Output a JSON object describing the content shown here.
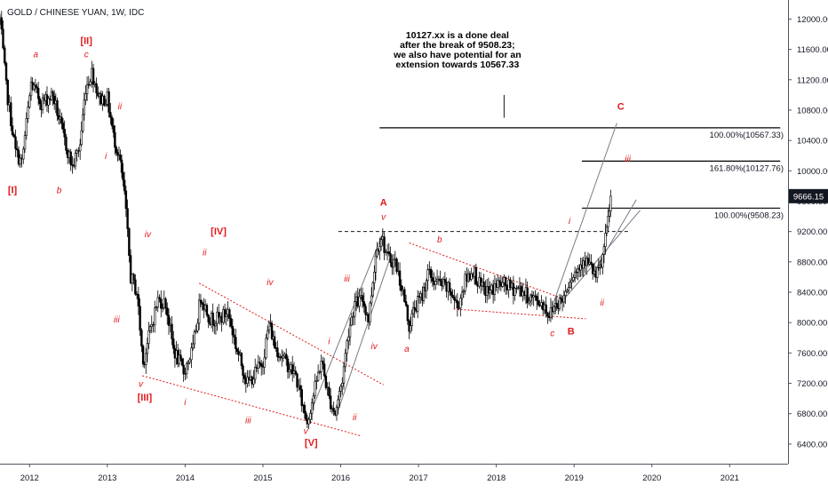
{
  "chart_title": "GOLD / CHINESE YUAN, 1W, IDC",
  "chart_data": {
    "type": "candlestick",
    "title": "GOLD / CHINESE YUAN, 1W, IDC",
    "xlim": [
      2011.62,
      2021.75
    ],
    "ylim": [
      6141,
      12251
    ],
    "x_ticks": [
      {
        "label": "2012",
        "x": 2012
      },
      {
        "label": "2013",
        "x": 2013
      },
      {
        "label": "2014",
        "x": 2014
      },
      {
        "label": "2015",
        "x": 2015
      },
      {
        "label": "2016",
        "x": 2016
      },
      {
        "label": "2017",
        "x": 2017
      },
      {
        "label": "2018",
        "x": 2018
      },
      {
        "label": "2019",
        "x": 2019
      },
      {
        "label": "2020",
        "x": 2020
      },
      {
        "label": "2021",
        "x": 2021
      }
    ],
    "y_ticks": [
      {
        "label": "6400.00",
        "y": 6400
      },
      {
        "label": "6800.00",
        "y": 6800
      },
      {
        "label": "7200.00",
        "y": 7200
      },
      {
        "label": "7600.00",
        "y": 7600
      },
      {
        "label": "8000.00",
        "y": 8000
      },
      {
        "label": "8400.00",
        "y": 8400
      },
      {
        "label": "8800.00",
        "y": 8800
      },
      {
        "label": "9200.00",
        "y": 9200
      },
      {
        "label": "9600.00",
        "y": 9600
      },
      {
        "label": "10000.00",
        "y": 10000
      },
      {
        "label": "10400.00",
        "y": 10400
      },
      {
        "label": "10800.00",
        "y": 10800
      },
      {
        "label": "11200.00",
        "y": 11200
      },
      {
        "label": "11600.00",
        "y": 11600
      },
      {
        "label": "12000.00",
        "y": 12000
      }
    ],
    "price_path": [
      {
        "x": 2011.62,
        "y": 12000
      },
      {
        "x": 2011.7,
        "y": 11100
      },
      {
        "x": 2011.82,
        "y": 10250
      },
      {
        "x": 2011.9,
        "y": 10100
      },
      {
        "x": 2012.02,
        "y": 11150
      },
      {
        "x": 2012.15,
        "y": 10900
      },
      {
        "x": 2012.3,
        "y": 11000
      },
      {
        "x": 2012.45,
        "y": 10400
      },
      {
        "x": 2012.55,
        "y": 10050
      },
      {
        "x": 2012.65,
        "y": 10350
      },
      {
        "x": 2012.72,
        "y": 11100
      },
      {
        "x": 2012.8,
        "y": 11300
      },
      {
        "x": 2012.9,
        "y": 10950
      },
      {
        "x": 2013.0,
        "y": 10950
      },
      {
        "x": 2013.08,
        "y": 10450
      },
      {
        "x": 2013.15,
        "y": 10200
      },
      {
        "x": 2013.22,
        "y": 9700
      },
      {
        "x": 2013.3,
        "y": 8600
      },
      {
        "x": 2013.38,
        "y": 8400
      },
      {
        "x": 2013.46,
        "y": 7450
      },
      {
        "x": 2013.55,
        "y": 7900
      },
      {
        "x": 2013.65,
        "y": 8300
      },
      {
        "x": 2013.75,
        "y": 8250
      },
      {
        "x": 2013.85,
        "y": 7650
      },
      {
        "x": 2013.98,
        "y": 7350
      },
      {
        "x": 2014.1,
        "y": 7650
      },
      {
        "x": 2014.2,
        "y": 8350
      },
      {
        "x": 2014.32,
        "y": 8050
      },
      {
        "x": 2014.45,
        "y": 8050
      },
      {
        "x": 2014.55,
        "y": 8150
      },
      {
        "x": 2014.65,
        "y": 7700
      },
      {
        "x": 2014.8,
        "y": 7200
      },
      {
        "x": 2014.88,
        "y": 7300
      },
      {
        "x": 2015.0,
        "y": 7500
      },
      {
        "x": 2015.08,
        "y": 8000
      },
      {
        "x": 2015.15,
        "y": 7700
      },
      {
        "x": 2015.28,
        "y": 7500
      },
      {
        "x": 2015.42,
        "y": 7300
      },
      {
        "x": 2015.5,
        "y": 6950
      },
      {
        "x": 2015.57,
        "y": 6700
      },
      {
        "x": 2015.65,
        "y": 7050
      },
      {
        "x": 2015.75,
        "y": 7500
      },
      {
        "x": 2015.85,
        "y": 7000
      },
      {
        "x": 2015.93,
        "y": 6800
      },
      {
        "x": 2016.02,
        "y": 7250
      },
      {
        "x": 2016.1,
        "y": 7900
      },
      {
        "x": 2016.18,
        "y": 8250
      },
      {
        "x": 2016.28,
        "y": 8300
      },
      {
        "x": 2016.36,
        "y": 8050
      },
      {
        "x": 2016.45,
        "y": 8900
      },
      {
        "x": 2016.52,
        "y": 9150
      },
      {
        "x": 2016.6,
        "y": 8850
      },
      {
        "x": 2016.7,
        "y": 8800
      },
      {
        "x": 2016.8,
        "y": 8400
      },
      {
        "x": 2016.88,
        "y": 7950
      },
      {
        "x": 2016.95,
        "y": 8200
      },
      {
        "x": 2017.05,
        "y": 8350
      },
      {
        "x": 2017.12,
        "y": 8650
      },
      {
        "x": 2017.2,
        "y": 8550
      },
      {
        "x": 2017.3,
        "y": 8500
      },
      {
        "x": 2017.42,
        "y": 8400
      },
      {
        "x": 2017.5,
        "y": 8200
      },
      {
        "x": 2017.6,
        "y": 8550
      },
      {
        "x": 2017.7,
        "y": 8700
      },
      {
        "x": 2017.8,
        "y": 8450
      },
      {
        "x": 2017.92,
        "y": 8400
      },
      {
        "x": 2018.0,
        "y": 8500
      },
      {
        "x": 2018.1,
        "y": 8500
      },
      {
        "x": 2018.2,
        "y": 8450
      },
      {
        "x": 2018.3,
        "y": 8450
      },
      {
        "x": 2018.4,
        "y": 8350
      },
      {
        "x": 2018.5,
        "y": 8300
      },
      {
        "x": 2018.6,
        "y": 8250
      },
      {
        "x": 2018.68,
        "y": 8100
      },
      {
        "x": 2018.76,
        "y": 8250
      },
      {
        "x": 2018.85,
        "y": 8300
      },
      {
        "x": 2018.95,
        "y": 8600
      },
      {
        "x": 2019.05,
        "y": 8700
      },
      {
        "x": 2019.12,
        "y": 8850
      },
      {
        "x": 2019.2,
        "y": 8750
      },
      {
        "x": 2019.28,
        "y": 8600
      },
      {
        "x": 2019.35,
        "y": 8750
      },
      {
        "x": 2019.42,
        "y": 9200
      },
      {
        "x": 2019.47,
        "y": 9666
      }
    ],
    "last_price": {
      "label": "9666.15",
      "y": 9666.15
    },
    "fib_levels": [
      {
        "label": "100.00%(10567.33)",
        "y": 10567.33,
        "x1": 2016.5,
        "x2": 2021.65
      },
      {
        "label": "161.80%(10127.76)",
        "y": 10127.76,
        "x1": 2019.1,
        "x2": 2021.65
      },
      {
        "label": "100.00%(9508.23)",
        "y": 9508.23,
        "x1": 2019.1,
        "x2": 2021.65
      }
    ],
    "dashed_level": {
      "y": 9200,
      "x1": 2015.97,
      "x2": 2019.72
    },
    "red_dotted_lines": [
      {
        "x1": 2014.18,
        "y1": 8520,
        "x2": 2016.55,
        "y2": 7180
      },
      {
        "x1": 2013.45,
        "y1": 7300,
        "x2": 2016.25,
        "y2": 6510
      },
      {
        "x1": 2016.88,
        "y1": 9050,
        "x2": 2018.85,
        "y2": 8320
      },
      {
        "x1": 2017.45,
        "y1": 8180,
        "x2": 2019.15,
        "y2": 8050
      }
    ],
    "grey_trend_lines": [
      {
        "x1": 2015.57,
        "y1": 6700,
        "x2": 2016.55,
        "y2": 9200
      },
      {
        "x1": 2015.95,
        "y1": 6790,
        "x2": 2016.65,
        "y2": 8900
      },
      {
        "x1": 2018.68,
        "y1": 8100,
        "x2": 2019.55,
        "y2": 10630
      },
      {
        "x1": 2018.72,
        "y1": 8130,
        "x2": 2019.85,
        "y2": 9480
      },
      {
        "x1": 2019.3,
        "y1": 8750,
        "x2": 2019.8,
        "y2": 9620
      }
    ],
    "vertical_marker": {
      "x": 2018.1,
      "y1": 10700,
      "y2": 11000
    },
    "annotations": [
      {
        "text": "a",
        "x": 2012.08,
        "y": 11540,
        "style": "minor"
      },
      {
        "text": "[II]",
        "x": 2012.73,
        "y": 11720,
        "style": "major"
      },
      {
        "text": "c",
        "x": 2012.73,
        "y": 11540,
        "style": "minor"
      },
      {
        "text": "ii",
        "x": 2013.16,
        "y": 10860,
        "style": "minor"
      },
      {
        "text": "i",
        "x": 2012.98,
        "y": 10200,
        "style": "minor"
      },
      {
        "text": "[I]",
        "x": 2011.78,
        "y": 9750,
        "style": "major"
      },
      {
        "text": "b",
        "x": 2012.38,
        "y": 9750,
        "style": "minor"
      },
      {
        "text": "iv",
        "x": 2013.52,
        "y": 9170,
        "style": "minor"
      },
      {
        "text": "[IV]",
        "x": 2014.43,
        "y": 9210,
        "style": "major"
      },
      {
        "text": "ii",
        "x": 2014.25,
        "y": 8930,
        "style": "minor"
      },
      {
        "text": "iv",
        "x": 2015.09,
        "y": 8540,
        "style": "minor"
      },
      {
        "text": "iii",
        "x": 2013.12,
        "y": 8050,
        "style": "minor"
      },
      {
        "text": "v",
        "x": 2013.43,
        "y": 7200,
        "style": "minor"
      },
      {
        "text": "[III]",
        "x": 2013.48,
        "y": 7020,
        "style": "major"
      },
      {
        "text": "i",
        "x": 2014.0,
        "y": 6960,
        "style": "minor"
      },
      {
        "text": "iii",
        "x": 2014.81,
        "y": 6720,
        "style": "minor"
      },
      {
        "text": "v",
        "x": 2015.55,
        "y": 6580,
        "style": "minor"
      },
      {
        "text": "[V]",
        "x": 2015.62,
        "y": 6420,
        "style": "major"
      },
      {
        "text": "i",
        "x": 2015.85,
        "y": 7760,
        "style": "minor"
      },
      {
        "text": "ii",
        "x": 2016.18,
        "y": 6760,
        "style": "minor"
      },
      {
        "text": "iii",
        "x": 2016.08,
        "y": 8590,
        "style": "minor"
      },
      {
        "text": "iv",
        "x": 2016.43,
        "y": 7700,
        "style": "minor"
      },
      {
        "text": "A",
        "x": 2016.55,
        "y": 9590,
        "style": "major"
      },
      {
        "text": "v",
        "x": 2016.55,
        "y": 9400,
        "style": "minor"
      },
      {
        "text": "a",
        "x": 2016.85,
        "y": 7660,
        "style": "minor"
      },
      {
        "text": "b",
        "x": 2017.27,
        "y": 9100,
        "style": "minor"
      },
      {
        "text": "c",
        "x": 2018.72,
        "y": 7870,
        "style": "minor"
      },
      {
        "text": "B",
        "x": 2018.96,
        "y": 7890,
        "style": "major"
      },
      {
        "text": "i",
        "x": 2018.94,
        "y": 9350,
        "style": "minor"
      },
      {
        "text": "ii",
        "x": 2019.36,
        "y": 8270,
        "style": "minor"
      },
      {
        "text": "iii",
        "x": 2019.69,
        "y": 10170,
        "style": "minor"
      },
      {
        "text": "C",
        "x": 2019.6,
        "y": 10850,
        "style": "major"
      }
    ],
    "note_lines": [
      "10127.xx is a done deal",
      "after the break of 9508.23;",
      "we also have potential for an",
      "extension towards 10567.33"
    ],
    "note_anchor": {
      "x": 2017.5,
      "y": 11750
    },
    "grid": false,
    "legend": "none"
  },
  "colors": {
    "candle": "#000000",
    "wave_label": "#e0191b",
    "trend_red": "#e0191b",
    "fib_line": "#000000",
    "trend_grey": "#787b86",
    "last_price_badge": "#131722",
    "last_price_text": "#ffffff",
    "axis_text": "#131722",
    "axis_line": "#50535e"
  }
}
